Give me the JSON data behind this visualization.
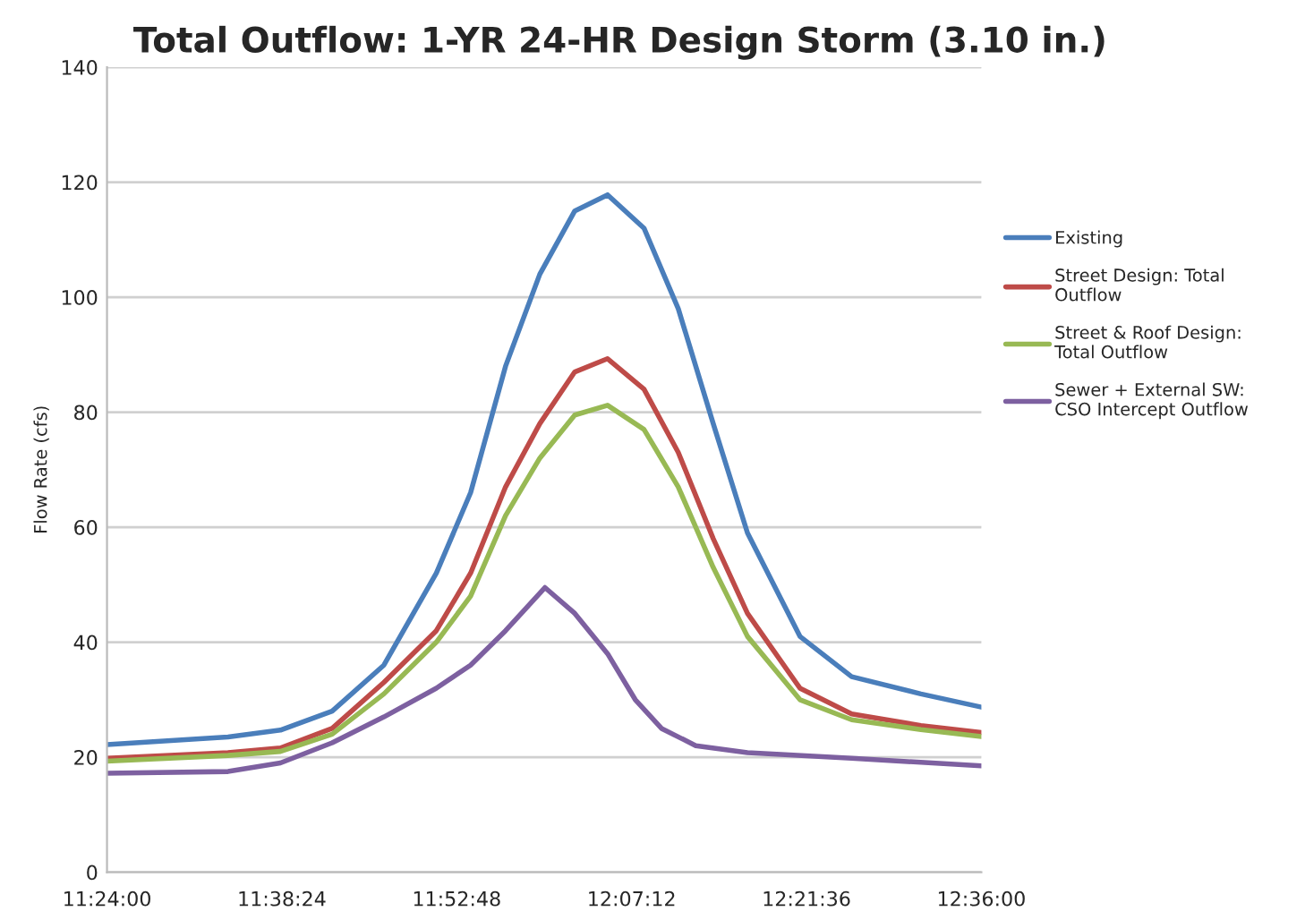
{
  "chart_data": {
    "type": "line",
    "title": "Total Outflow: 1-YR 24-HR Design Storm (3.10 in.)",
    "ylabel": "Flow Rate (cfs)",
    "xlim": [
      11.4,
      12.6
    ],
    "xticks": [
      {
        "value": 11.4,
        "label": "11:24:00"
      },
      {
        "value": 11.64,
        "label": "11:38:24"
      },
      {
        "value": 11.88,
        "label": "11:52:48"
      },
      {
        "value": 12.12,
        "label": "12:07:12"
      },
      {
        "value": 12.36,
        "label": "12:21:36"
      },
      {
        "value": 12.6,
        "label": "12:36:00"
      }
    ],
    "ylim": [
      0,
      140
    ],
    "yticks": [
      0,
      20,
      40,
      60,
      80,
      100,
      120,
      140
    ],
    "grid": "y",
    "legend": "right",
    "marker": "none",
    "line_style": "solid",
    "series": [
      {
        "name": "Existing",
        "color": "#4a7ebb",
        "x": [
          11.4,
          11.566,
          11.638,
          11.709,
          11.78,
          11.852,
          11.899,
          11.947,
          11.994,
          12.042,
          12.087,
          12.137,
          12.184,
          12.232,
          12.279,
          12.351,
          12.422,
          12.517,
          12.6
        ],
        "values": [
          22.2,
          23.5,
          24.7,
          28,
          36,
          52,
          66,
          88,
          104,
          115,
          117.8,
          112,
          98,
          78,
          59,
          41,
          34,
          31,
          28.7
        ]
      },
      {
        "name": "Street Design: Total\nOutflow",
        "color": "#be4b48",
        "x": [
          11.4,
          11.566,
          11.638,
          11.709,
          11.78,
          11.852,
          11.899,
          11.947,
          11.994,
          12.042,
          12.087,
          12.137,
          12.184,
          12.232,
          12.279,
          12.351,
          12.422,
          12.517,
          12.6
        ],
        "values": [
          19.8,
          20.8,
          21.6,
          25,
          33,
          42,
          52,
          67,
          78,
          87,
          89.3,
          84,
          73,
          58,
          45,
          32,
          27.5,
          25.5,
          24.3
        ]
      },
      {
        "name": "Street & Roof Design:\nTotal Outflow",
        "color": "#98b954",
        "x": [
          11.4,
          11.566,
          11.638,
          11.709,
          11.78,
          11.852,
          11.899,
          11.947,
          11.994,
          12.042,
          12.087,
          12.137,
          12.184,
          12.232,
          12.279,
          12.351,
          12.422,
          12.517,
          12.6
        ],
        "values": [
          19.3,
          20.3,
          21,
          24,
          31,
          40,
          48,
          62,
          72,
          79.5,
          81.2,
          77,
          67,
          53,
          41,
          30,
          26.5,
          24.8,
          23.6
        ]
      },
      {
        "name": "Sewer + External SW:\nCSO Intercept Outflow",
        "color": "#7d60a0",
        "x": [
          11.4,
          11.566,
          11.638,
          11.709,
          11.78,
          11.852,
          11.899,
          11.947,
          12.001,
          12.042,
          12.087,
          12.125,
          12.161,
          12.208,
          12.279,
          12.422,
          12.6
        ],
        "values": [
          17.2,
          17.5,
          19,
          22.5,
          27,
          32,
          36,
          42,
          49.5,
          45,
          38,
          30,
          25,
          22,
          20.8,
          19.8,
          18.5
        ]
      }
    ]
  }
}
